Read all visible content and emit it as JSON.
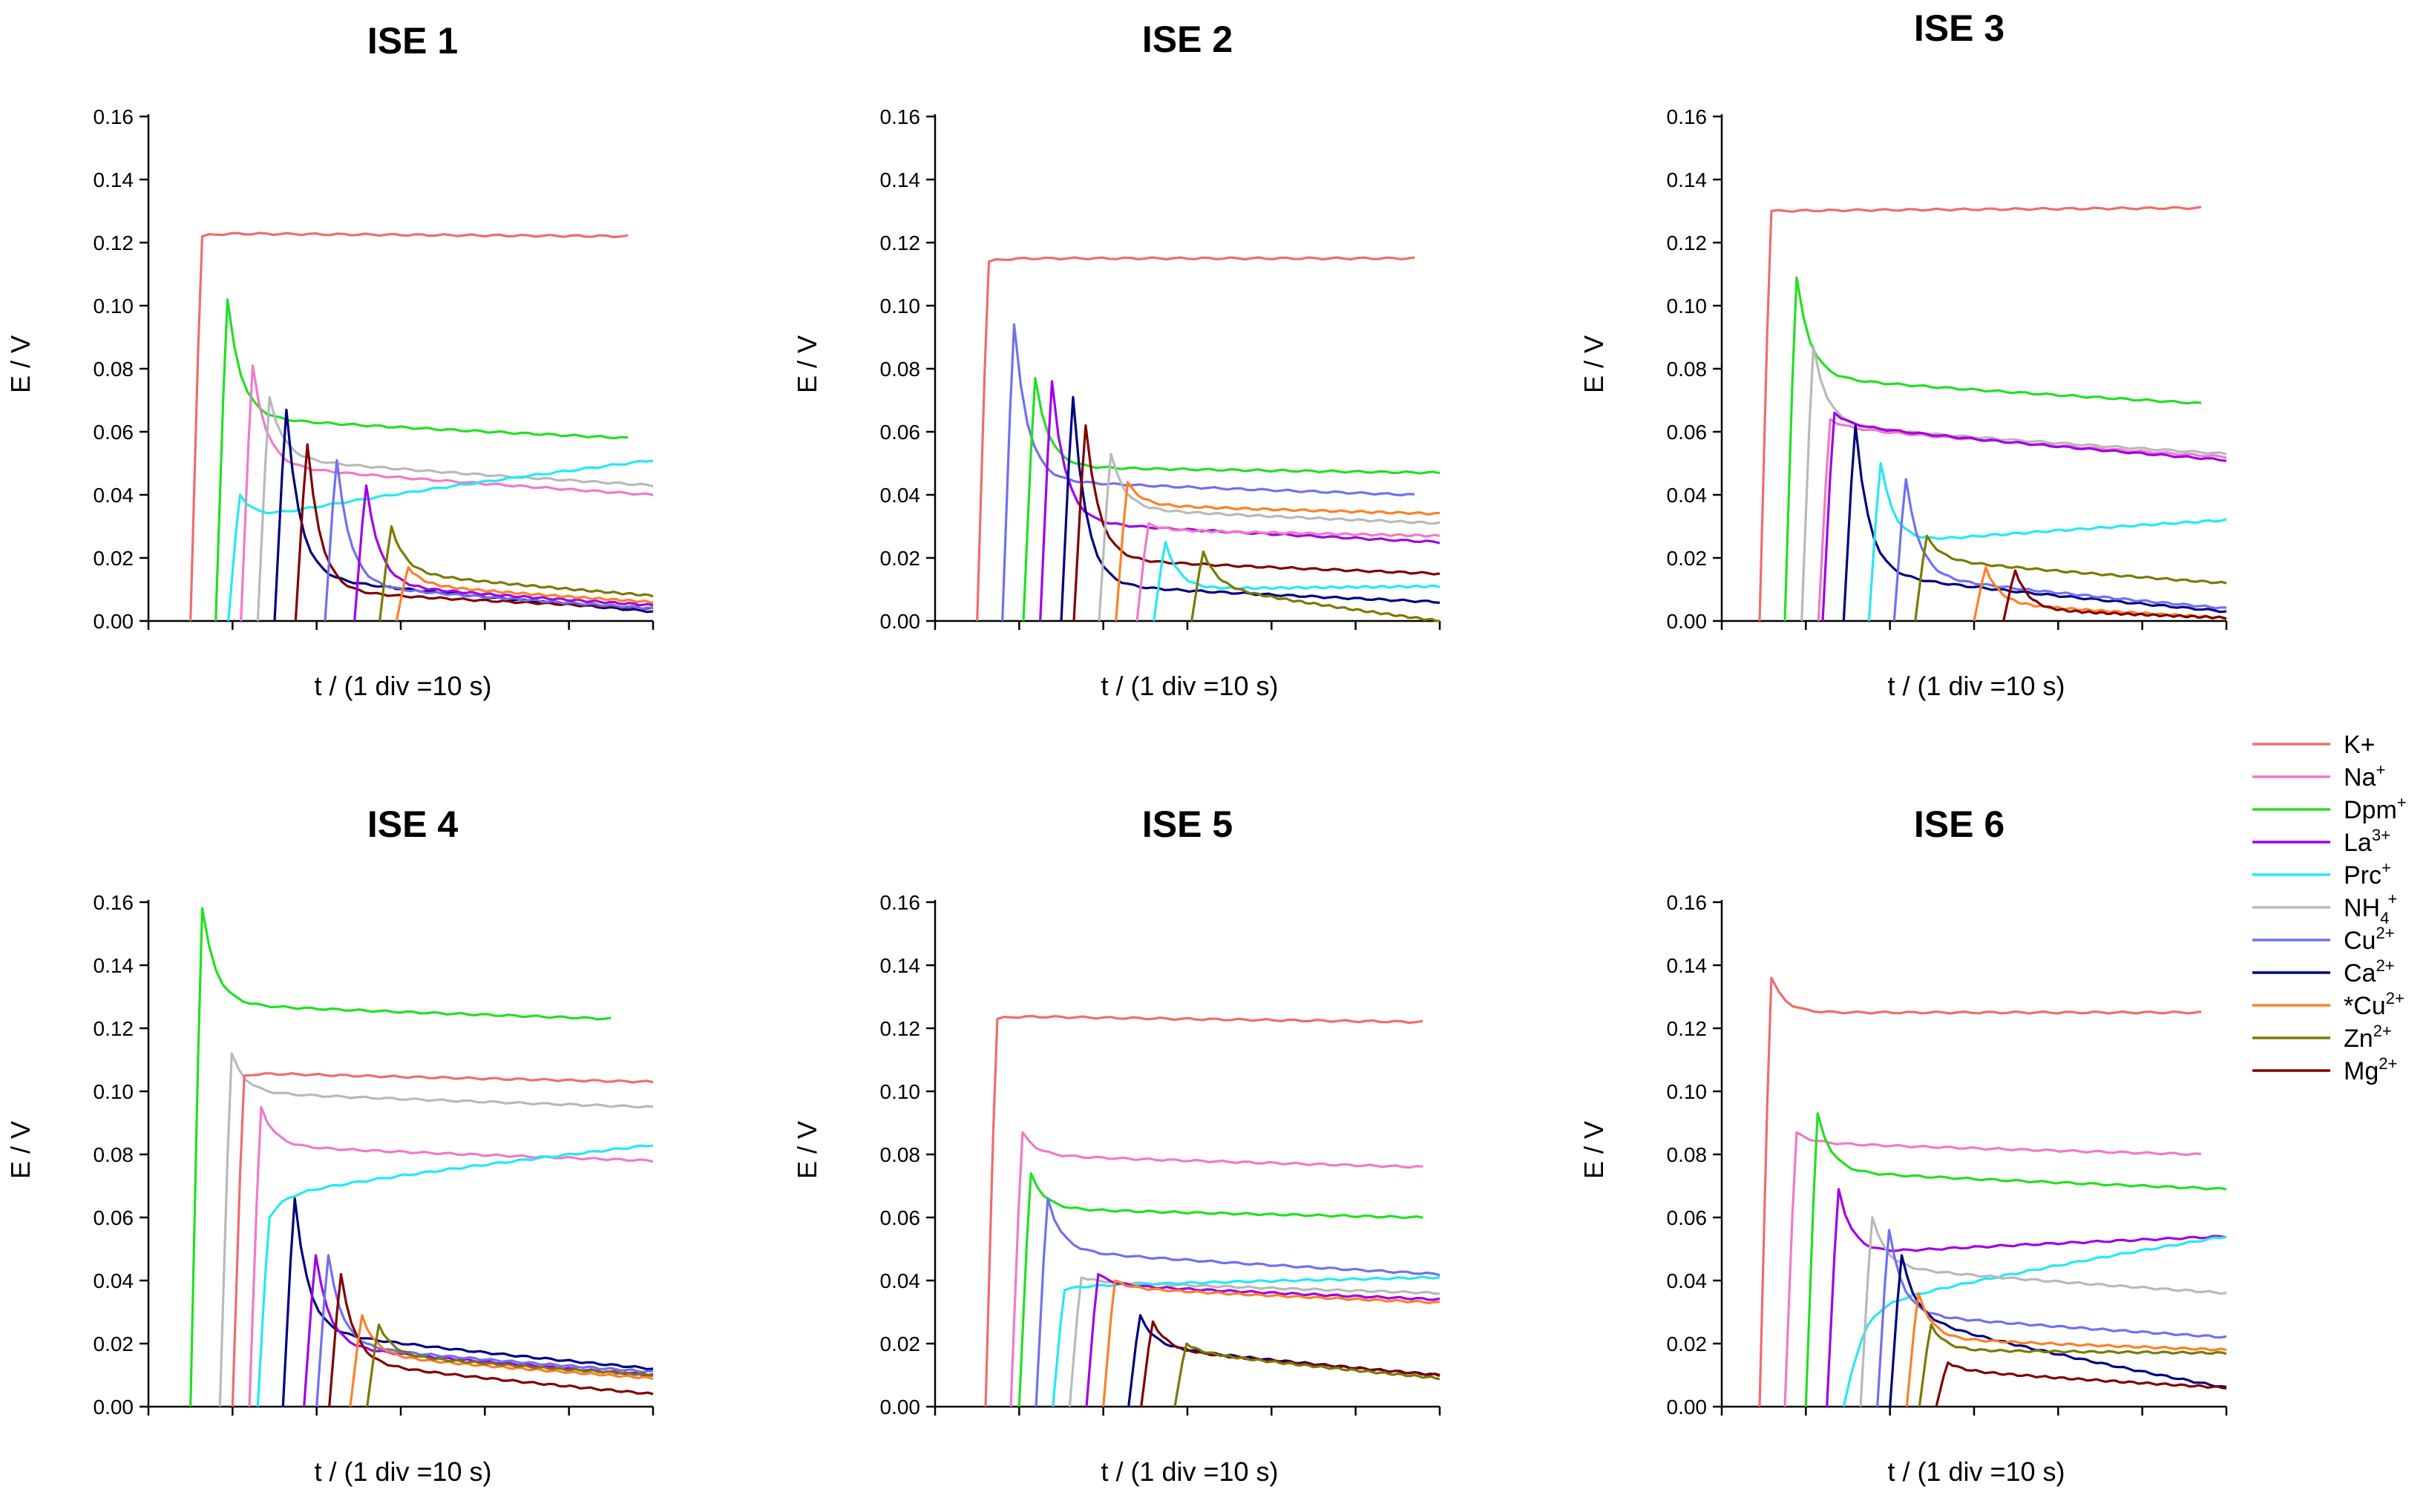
{
  "chart_data": {
    "type": "line",
    "series_legend": [
      {
        "key": "K",
        "label": "K+",
        "base": "K+",
        "sup": "",
        "sub": "",
        "color": "#f06c6c"
      },
      {
        "key": "Na",
        "label": "Na+",
        "base": "Na",
        "sup": "+",
        "sub": "",
        "color": "#f07ac8"
      },
      {
        "key": "Dpm",
        "label": "Dpm+",
        "base": "Dpm",
        "sup": "+",
        "sub": "",
        "color": "#22e022"
      },
      {
        "key": "La",
        "label": "La3+",
        "base": "La",
        "sup": "3+",
        "sub": "",
        "color": "#a000e6"
      },
      {
        "key": "Prc",
        "label": "Prc+",
        "base": "Prc",
        "sup": "+",
        "sub": "",
        "color": "#22eaf0"
      },
      {
        "key": "NH4",
        "label": "NH4+",
        "base": "NH",
        "sup": "+",
        "sub": "4",
        "color": "#b9b9b9"
      },
      {
        "key": "Cu",
        "label": "Cu2+",
        "base": "Cu",
        "sup": "2+",
        "sub": "",
        "color": "#7070f0"
      },
      {
        "key": "Ca",
        "label": "Ca2+",
        "base": "Ca",
        "sup": "2+",
        "sub": "",
        "color": "#000080"
      },
      {
        "key": "Cu_star",
        "label": "*Cu2+",
        "base": "*Cu",
        "sup": "2+",
        "sub": "",
        "color": "#ff7f27"
      },
      {
        "key": "Zn",
        "label": "Zn2+",
        "base": "Zn",
        "sup": "2+",
        "sub": "",
        "color": "#7a7a00"
      },
      {
        "key": "Mg",
        "label": "Mg2+",
        "base": "Mg",
        "sup": "2+",
        "sub": "",
        "color": "#800000"
      }
    ],
    "legend_position": "right",
    "panels": [
      {
        "title": "ISE 1",
        "xlabel": "t / (1 div =10 s)",
        "ylabel": "E / V",
        "ylim": [
          0,
          0.16
        ],
        "xlim": [
          0,
          60
        ],
        "yticks": [
          "0.00",
          "0.02",
          "0.04",
          "0.06",
          "0.08",
          "0.10",
          "0.12",
          "0.14",
          "0.16"
        ],
        "series": [
          {
            "key": "K",
            "start": 5,
            "peak": 0.122,
            "steady": 0.123,
            "end": 0.122,
            "end_t": 57
          },
          {
            "key": "Dpm",
            "start": 8,
            "peak": 0.102,
            "steady": 0.065,
            "end": 0.058,
            "end_t": 57
          },
          {
            "key": "Na",
            "start": 11,
            "peak": 0.081,
            "steady": 0.05,
            "end": 0.04,
            "end_t": 60
          },
          {
            "key": "NH4",
            "start": 13,
            "peak": 0.071,
            "steady": 0.052,
            "end": 0.043,
            "end_t": 60
          },
          {
            "key": "Prc",
            "start": 9.5,
            "peak": 0.04,
            "steady": 0.031,
            "end": 0.051,
            "end_t": 60
          },
          {
            "key": "Ca",
            "start": 15,
            "peak": 0.067,
            "steady": 0.015,
            "end": 0.003,
            "end_t": 60
          },
          {
            "key": "Mg",
            "start": 17.5,
            "peak": 0.056,
            "steady": 0.01,
            "end": 0.004,
            "end_t": 60
          },
          {
            "key": "Cu",
            "start": 21,
            "peak": 0.051,
            "steady": 0.012,
            "end": 0.004,
            "end_t": 60
          },
          {
            "key": "La",
            "start": 24.5,
            "peak": 0.043,
            "steady": 0.012,
            "end": 0.005,
            "end_t": 60
          },
          {
            "key": "Zn",
            "start": 27.5,
            "peak": 0.03,
            "steady": 0.016,
            "end": 0.008,
            "end_t": 60
          },
          {
            "key": "Cu_star",
            "start": 29.5,
            "peak": 0.017,
            "steady": 0.012,
            "end": 0.006,
            "end_t": 60
          }
        ]
      },
      {
        "title": "ISE 2",
        "xlabel": "t / (1 div =10 s)",
        "ylabel": "E / V",
        "ylim": [
          0,
          0.16
        ],
        "xlim": [
          0,
          60
        ],
        "yticks": [
          "0.00",
          "0.02",
          "0.04",
          "0.06",
          "0.08",
          "0.10",
          "0.12",
          "0.14",
          "0.16"
        ],
        "series": [
          {
            "key": "K",
            "start": 5,
            "peak": 0.114,
            "steady": 0.115,
            "end": 0.115,
            "end_t": 57
          },
          {
            "key": "Cu",
            "start": 8,
            "peak": 0.094,
            "steady": 0.045,
            "end": 0.04,
            "end_t": 57
          },
          {
            "key": "Dpm",
            "start": 10.5,
            "peak": 0.077,
            "steady": 0.049,
            "end": 0.047,
            "end_t": 60
          },
          {
            "key": "La",
            "start": 12.5,
            "peak": 0.076,
            "steady": 0.032,
            "end": 0.025,
            "end_t": 60
          },
          {
            "key": "Ca",
            "start": 15,
            "peak": 0.071,
            "steady": 0.012,
            "end": 0.006,
            "end_t": 60
          },
          {
            "key": "Mg",
            "start": 16.5,
            "peak": 0.062,
            "steady": 0.02,
            "end": 0.015,
            "end_t": 60
          },
          {
            "key": "NH4",
            "start": 19.5,
            "peak": 0.053,
            "steady": 0.036,
            "end": 0.031,
            "end_t": 60
          },
          {
            "key": "Cu_star",
            "start": 21.5,
            "peak": 0.044,
            "steady": 0.037,
            "end": 0.034,
            "end_t": 60
          },
          {
            "key": "Na",
            "start": 24,
            "peak": 0.031,
            "steady": 0.029,
            "end": 0.027,
            "end_t": 60
          },
          {
            "key": "Prc",
            "start": 26,
            "peak": 0.025,
            "steady": 0.01,
            "end": 0.011,
            "end_t": 60
          },
          {
            "key": "Zn",
            "start": 30.5,
            "peak": 0.022,
            "steady": 0.012,
            "end": 0.0,
            "end_t": 60
          }
        ]
      },
      {
        "title": "ISE 3",
        "xlabel": "t / (1 div =10 s)",
        "ylabel": "E / V",
        "ylim": [
          0,
          0.16
        ],
        "xlim": [
          0,
          60
        ],
        "yticks": [
          "0.00",
          "0.02",
          "0.04",
          "0.06",
          "0.08",
          "0.10",
          "0.12",
          "0.14",
          "0.16"
        ],
        "series": [
          {
            "key": "K",
            "start": 4.5,
            "peak": 0.13,
            "steady": 0.13,
            "end": 0.131,
            "end_t": 57
          },
          {
            "key": "Dpm",
            "start": 7.5,
            "peak": 0.109,
            "steady": 0.078,
            "end": 0.069,
            "end_t": 57
          },
          {
            "key": "NH4",
            "start": 9.5,
            "peak": 0.087,
            "steady": 0.063,
            "end": 0.053,
            "end_t": 60
          },
          {
            "key": "Na",
            "start": 11.5,
            "peak": 0.064,
            "steady": 0.062,
            "end": 0.052,
            "end_t": 60
          },
          {
            "key": "La",
            "start": 12,
            "peak": 0.066,
            "steady": 0.063,
            "end": 0.051,
            "end_t": 60
          },
          {
            "key": "Ca",
            "start": 14.5,
            "peak": 0.062,
            "steady": 0.016,
            "end": 0.003,
            "end_t": 60
          },
          {
            "key": "Prc",
            "start": 17.5,
            "peak": 0.05,
            "steady": 0.024,
            "end": 0.032,
            "end_t": 60
          },
          {
            "key": "Cu",
            "start": 20.5,
            "peak": 0.045,
            "steady": 0.015,
            "end": 0.004,
            "end_t": 60
          },
          {
            "key": "Zn",
            "start": 23,
            "peak": 0.027,
            "steady": 0.02,
            "end": 0.012,
            "end_t": 60
          },
          {
            "key": "Cu_star",
            "start": 30,
            "peak": 0.017,
            "steady": 0.006,
            "end": 0.001,
            "end_t": 60
          },
          {
            "key": "Mg",
            "start": 33.5,
            "peak": 0.016,
            "steady": 0.004,
            "end": 0.001,
            "end_t": 60
          }
        ]
      },
      {
        "title": "ISE 4",
        "xlabel": "t / (1 div =10 s)",
        "ylabel": "E / V",
        "ylim": [
          0,
          0.16
        ],
        "xlim": [
          0,
          60
        ],
        "yticks": [
          "0.00",
          "0.02",
          "0.04",
          "0.06",
          "0.08",
          "0.10",
          "0.12",
          "0.14",
          "0.16"
        ],
        "series": [
          {
            "key": "Dpm",
            "start": 5,
            "peak": 0.158,
            "steady": 0.128,
            "end": 0.123,
            "end_t": 55
          },
          {
            "key": "NH4",
            "start": 8.5,
            "peak": 0.112,
            "steady": 0.1,
            "end": 0.095,
            "end_t": 60
          },
          {
            "key": "K",
            "start": 10,
            "peak": 0.105,
            "steady": 0.106,
            "end": 0.103,
            "end_t": 60
          },
          {
            "key": "Na",
            "start": 12,
            "peak": 0.095,
            "steady": 0.083,
            "end": 0.078,
            "end_t": 60
          },
          {
            "key": "Prc",
            "start": 13,
            "peak": 0.06,
            "steady": 0.066,
            "end": 0.083,
            "end_t": 60
          },
          {
            "key": "Ca",
            "start": 16,
            "peak": 0.066,
            "steady": 0.025,
            "end": 0.012,
            "end_t": 60
          },
          {
            "key": "La",
            "start": 18.5,
            "peak": 0.048,
            "steady": 0.02,
            "end": 0.01,
            "end_t": 60
          },
          {
            "key": "Cu",
            "start": 20,
            "peak": 0.048,
            "steady": 0.02,
            "end": 0.011,
            "end_t": 60
          },
          {
            "key": "Mg",
            "start": 21.5,
            "peak": 0.042,
            "steady": 0.015,
            "end": 0.004,
            "end_t": 60
          },
          {
            "key": "Cu_star",
            "start": 24,
            "peak": 0.029,
            "steady": 0.017,
            "end": 0.009,
            "end_t": 60
          },
          {
            "key": "Zn",
            "start": 26,
            "peak": 0.026,
            "steady": 0.017,
            "end": 0.01,
            "end_t": 60
          }
        ]
      },
      {
        "title": "ISE 5",
        "xlabel": "t / (1 div =10 s)",
        "ylabel": "E / V",
        "ylim": [
          0,
          0.16
        ],
        "xlim": [
          0,
          60
        ],
        "yticks": [
          "0.00",
          "0.02",
          "0.04",
          "0.06",
          "0.08",
          "0.10",
          "0.12",
          "0.14",
          "0.16"
        ],
        "series": [
          {
            "key": "K",
            "start": 6,
            "peak": 0.123,
            "steady": 0.124,
            "end": 0.122,
            "end_t": 58
          },
          {
            "key": "Na",
            "start": 9,
            "peak": 0.087,
            "steady": 0.08,
            "end": 0.076,
            "end_t": 58
          },
          {
            "key": "Dpm",
            "start": 10,
            "peak": 0.074,
            "steady": 0.063,
            "end": 0.06,
            "end_t": 58
          },
          {
            "key": "Cu",
            "start": 12,
            "peak": 0.066,
            "steady": 0.05,
            "end": 0.042,
            "end_t": 60
          },
          {
            "key": "NH4",
            "start": 16,
            "peak": 0.041,
            "steady": 0.04,
            "end": 0.036,
            "end_t": 60
          },
          {
            "key": "Prc",
            "start": 14,
            "peak": 0.037,
            "steady": 0.038,
            "end": 0.041,
            "end_t": 60
          },
          {
            "key": "La",
            "start": 18,
            "peak": 0.042,
            "steady": 0.039,
            "end": 0.034,
            "end_t": 60
          },
          {
            "key": "Cu_star",
            "start": 20,
            "peak": 0.04,
            "steady": 0.038,
            "end": 0.033,
            "end_t": 60
          },
          {
            "key": "Ca",
            "start": 23,
            "peak": 0.029,
            "steady": 0.02,
            "end": 0.01,
            "end_t": 60
          },
          {
            "key": "Mg",
            "start": 24.5,
            "peak": 0.027,
            "steady": 0.019,
            "end": 0.01,
            "end_t": 60
          },
          {
            "key": "Zn",
            "start": 28.5,
            "peak": 0.02,
            "steady": 0.018,
            "end": 0.009,
            "end_t": 60
          }
        ]
      },
      {
        "title": "ISE 6",
        "xlabel": "t / (1 div =10 s)",
        "ylabel": "E / V",
        "ylim": [
          0,
          0.16
        ],
        "xlim": [
          0,
          60
        ],
        "yticks": [
          "0.00",
          "0.02",
          "0.04",
          "0.06",
          "0.08",
          "0.10",
          "0.12",
          "0.14",
          "0.16"
        ],
        "series": [
          {
            "key": "K",
            "start": 4.5,
            "peak": 0.136,
            "steady": 0.125,
            "end": 0.125,
            "end_t": 57
          },
          {
            "key": "Na",
            "start": 7.5,
            "peak": 0.087,
            "steady": 0.084,
            "end": 0.08,
            "end_t": 57
          },
          {
            "key": "Dpm",
            "start": 10,
            "peak": 0.093,
            "steady": 0.075,
            "end": 0.069,
            "end_t": 60
          },
          {
            "key": "La",
            "start": 12.5,
            "peak": 0.069,
            "steady": 0.048,
            "end": 0.054,
            "end_t": 60
          },
          {
            "key": "Prc",
            "start": 14.5,
            "peak": 0.015,
            "steady": 0.03,
            "end": 0.054,
            "end_t": 60
          },
          {
            "key": "NH4",
            "start": 16.5,
            "peak": 0.06,
            "steady": 0.045,
            "end": 0.036,
            "end_t": 60
          },
          {
            "key": "Cu",
            "start": 18.5,
            "peak": 0.056,
            "steady": 0.03,
            "end": 0.022,
            "end_t": 60
          },
          {
            "key": "Ca",
            "start": 20,
            "peak": 0.048,
            "steady": 0.03,
            "end": 0.006,
            "end_t": 60
          },
          {
            "key": "Cu_star",
            "start": 22,
            "peak": 0.036,
            "steady": 0.022,
            "end": 0.018,
            "end_t": 60
          },
          {
            "key": "Zn",
            "start": 23.5,
            "peak": 0.026,
            "steady": 0.018,
            "end": 0.017,
            "end_t": 60
          },
          {
            "key": "Mg",
            "start": 25.5,
            "peak": 0.014,
            "steady": 0.012,
            "end": 0.006,
            "end_t": 60
          }
        ]
      }
    ]
  }
}
